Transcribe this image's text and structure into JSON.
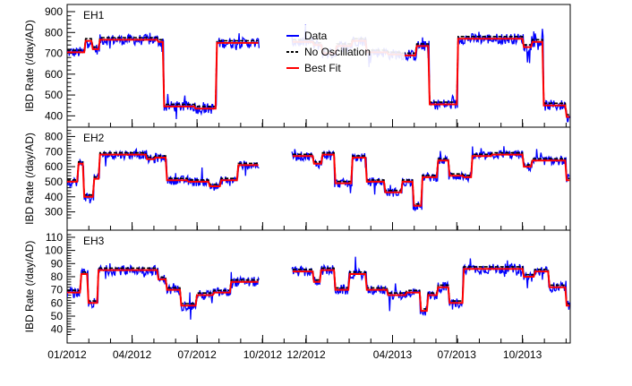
{
  "chart_data": {
    "type": "line",
    "x_tick_labels": [
      "01/2012",
      "04/2012",
      "07/2012",
      "10/2012",
      "12/2012",
      "04/2013",
      "07/2013",
      "10/2013"
    ],
    "ylabel": "IBD Rate (/day/AD)",
    "legend": {
      "placement": "top-right of first panel",
      "entries": [
        {
          "label": "Data",
          "color": "#0000ff",
          "style": "solid"
        },
        {
          "label": "No Oscillation",
          "color": "#000000",
          "style": "dashed"
        },
        {
          "label": "Best Fit",
          "color": "#ff0000",
          "style": "solid"
        }
      ]
    },
    "panels": [
      {
        "name": "EH1",
        "ylim": [
          380,
          900
        ],
        "yticks": [
          400,
          500,
          600,
          700,
          800,
          900
        ],
        "segments": [
          {
            "day0": 0,
            "day1": 26,
            "level": 705
          },
          {
            "day0": 26,
            "day1": 35,
            "level": 760
          },
          {
            "day0": 35,
            "day1": 46,
            "level": 720
          },
          {
            "day0": 46,
            "day1": 128,
            "level": 765
          },
          {
            "day0": 128,
            "day1": 136,
            "level": 755
          },
          {
            "day0": 136,
            "day1": 180,
            "level": 445
          },
          {
            "day0": 180,
            "day1": 210,
            "level": 435
          },
          {
            "day0": 210,
            "day1": 270,
            "level": 750
          },
          {
            "day0": 315,
            "day1": 345,
            "level": 755
          },
          {
            "day0": 345,
            "day1": 358,
            "level": 740
          },
          {
            "day0": 358,
            "day1": 378,
            "level": 700
          },
          {
            "day0": 378,
            "day1": 400,
            "level": 735
          },
          {
            "day0": 400,
            "day1": 420,
            "level": 760
          },
          {
            "day0": 420,
            "day1": 450,
            "level": 705
          },
          {
            "day0": 450,
            "day1": 470,
            "level": 695
          },
          {
            "day0": 470,
            "day1": 490,
            "level": 690
          },
          {
            "day0": 490,
            "day1": 508,
            "level": 735
          },
          {
            "day0": 508,
            "day1": 548,
            "level": 455
          },
          {
            "day0": 548,
            "day1": 640,
            "level": 770
          },
          {
            "day0": 640,
            "day1": 652,
            "level": 730
          },
          {
            "day0": 652,
            "day1": 668,
            "level": 755
          },
          {
            "day0": 668,
            "day1": 700,
            "level": 450
          },
          {
            "day0": 700,
            "day1": 705,
            "level": 395
          }
        ]
      },
      {
        "name": "EH2",
        "ylim": [
          250,
          850
        ],
        "yticks": [
          300,
          400,
          500,
          600,
          700,
          800
        ],
        "segments": [
          {
            "day0": 0,
            "day1": 16,
            "level": 500
          },
          {
            "day0": 16,
            "day1": 24,
            "level": 620
          },
          {
            "day0": 24,
            "day1": 38,
            "level": 400
          },
          {
            "day0": 38,
            "day1": 46,
            "level": 520
          },
          {
            "day0": 46,
            "day1": 112,
            "level": 680
          },
          {
            "day0": 112,
            "day1": 124,
            "level": 650
          },
          {
            "day0": 124,
            "day1": 140,
            "level": 660
          },
          {
            "day0": 140,
            "day1": 170,
            "level": 510
          },
          {
            "day0": 170,
            "day1": 200,
            "level": 500
          },
          {
            "day0": 200,
            "day1": 215,
            "level": 470
          },
          {
            "day0": 215,
            "day1": 240,
            "level": 510
          },
          {
            "day0": 240,
            "day1": 270,
            "level": 610
          },
          {
            "day0": 315,
            "day1": 345,
            "level": 670
          },
          {
            "day0": 345,
            "day1": 358,
            "level": 620
          },
          {
            "day0": 358,
            "day1": 375,
            "level": 680
          },
          {
            "day0": 375,
            "day1": 400,
            "level": 490
          },
          {
            "day0": 400,
            "day1": 420,
            "level": 660
          },
          {
            "day0": 420,
            "day1": 445,
            "level": 500
          },
          {
            "day0": 445,
            "day1": 470,
            "level": 430
          },
          {
            "day0": 470,
            "day1": 485,
            "level": 500
          },
          {
            "day0": 485,
            "day1": 498,
            "level": 340
          },
          {
            "day0": 498,
            "day1": 520,
            "level": 530
          },
          {
            "day0": 520,
            "day1": 535,
            "level": 640
          },
          {
            "day0": 535,
            "day1": 555,
            "level": 540
          },
          {
            "day0": 555,
            "day1": 568,
            "level": 530
          },
          {
            "day0": 568,
            "day1": 595,
            "level": 670
          },
          {
            "day0": 595,
            "day1": 640,
            "level": 680
          },
          {
            "day0": 640,
            "day1": 652,
            "level": 600
          },
          {
            "day0": 652,
            "day1": 700,
            "level": 640
          },
          {
            "day0": 700,
            "day1": 705,
            "level": 510
          }
        ]
      },
      {
        "name": "EH3",
        "ylim": [
          35,
          112
        ],
        "yticks": [
          40,
          50,
          60,
          70,
          80,
          90,
          100,
          110
        ],
        "segments": [
          {
            "day0": 0,
            "day1": 20,
            "level": 68
          },
          {
            "day0": 20,
            "day1": 30,
            "level": 82
          },
          {
            "day0": 30,
            "day1": 44,
            "level": 60
          },
          {
            "day0": 44,
            "day1": 128,
            "level": 85
          },
          {
            "day0": 128,
            "day1": 140,
            "level": 78
          },
          {
            "day0": 140,
            "day1": 160,
            "level": 70
          },
          {
            "day0": 160,
            "day1": 182,
            "level": 58
          },
          {
            "day0": 182,
            "day1": 205,
            "level": 66
          },
          {
            "day0": 205,
            "day1": 230,
            "level": 68
          },
          {
            "day0": 230,
            "day1": 270,
            "level": 76
          },
          {
            "day0": 315,
            "day1": 345,
            "level": 84
          },
          {
            "day0": 345,
            "day1": 355,
            "level": 76
          },
          {
            "day0": 355,
            "day1": 375,
            "level": 85
          },
          {
            "day0": 375,
            "day1": 395,
            "level": 70
          },
          {
            "day0": 395,
            "day1": 420,
            "level": 82
          },
          {
            "day0": 420,
            "day1": 450,
            "level": 70
          },
          {
            "day0": 450,
            "day1": 475,
            "level": 66
          },
          {
            "day0": 475,
            "day1": 495,
            "level": 68
          },
          {
            "day0": 495,
            "day1": 505,
            "level": 54
          },
          {
            "day0": 505,
            "day1": 520,
            "level": 66
          },
          {
            "day0": 520,
            "day1": 535,
            "level": 72
          },
          {
            "day0": 535,
            "day1": 555,
            "level": 60
          },
          {
            "day0": 555,
            "day1": 640,
            "level": 86
          },
          {
            "day0": 640,
            "day1": 655,
            "level": 80
          },
          {
            "day0": 655,
            "day1": 675,
            "level": 84
          },
          {
            "day0": 675,
            "day1": 700,
            "level": 72
          },
          {
            "day0": 700,
            "day1": 705,
            "level": 58
          }
        ]
      }
    ]
  }
}
